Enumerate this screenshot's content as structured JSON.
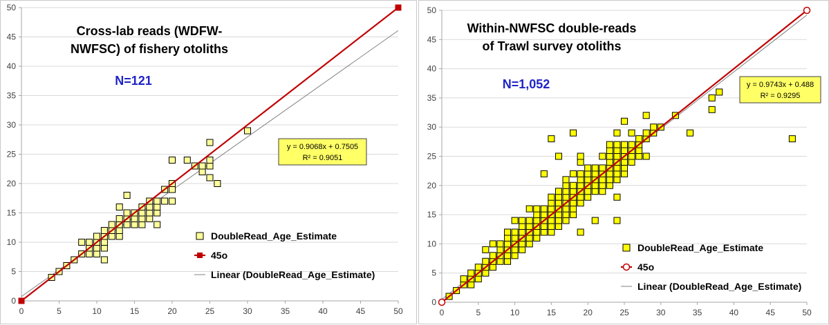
{
  "chart_data": [
    {
      "type": "scatter",
      "title_lines": [
        "Cross-lab reads (WDFW-",
        "NWFSC) of fishery otoliths"
      ],
      "annotation": "N=121",
      "xlim": [
        0,
        50
      ],
      "ylim": [
        0,
        50
      ],
      "xticks": [
        0,
        5,
        10,
        15,
        20,
        25,
        30,
        35,
        40,
        45,
        50
      ],
      "yticks": [
        0,
        5,
        10,
        15,
        20,
        25,
        30,
        35,
        40,
        45,
        50
      ],
      "grid": true,
      "legend_position": "bottom-right",
      "trend_equation": [
        "y = 0.9068x + 0.7505",
        "R² = 0.9051"
      ],
      "colors": {
        "points_fill": "#ffff99",
        "points_edge": "#000000",
        "line_45": "#c00000",
        "trend": "#808080",
        "eq_box": "#ffff66",
        "annotation": "#1f24c8"
      },
      "series": [
        {
          "name": "DoubleRead_Age_Estimate",
          "marker": "square",
          "points": [
            [
              4,
              4
            ],
            [
              5,
              5
            ],
            [
              6,
              6
            ],
            [
              7,
              7
            ],
            [
              8,
              8
            ],
            [
              8,
              10
            ],
            [
              9,
              8
            ],
            [
              9,
              9
            ],
            [
              9,
              10
            ],
            [
              10,
              8
            ],
            [
              10,
              9
            ],
            [
              10,
              10
            ],
            [
              10,
              11
            ],
            [
              11,
              7
            ],
            [
              11,
              9
            ],
            [
              11,
              10
            ],
            [
              11,
              11
            ],
            [
              11,
              12
            ],
            [
              12,
              11
            ],
            [
              12,
              12
            ],
            [
              12,
              13
            ],
            [
              13,
              11
            ],
            [
              13,
              12
            ],
            [
              13,
              13
            ],
            [
              13,
              14
            ],
            [
              13,
              16
            ],
            [
              14,
              13
            ],
            [
              14,
              14
            ],
            [
              14,
              15
            ],
            [
              14,
              18
            ],
            [
              15,
              13
            ],
            [
              15,
              14
            ],
            [
              15,
              15
            ],
            [
              16,
              13
            ],
            [
              16,
              14
            ],
            [
              16,
              15
            ],
            [
              16,
              16
            ],
            [
              17,
              14
            ],
            [
              17,
              15
            ],
            [
              17,
              16
            ],
            [
              17,
              17
            ],
            [
              18,
              13
            ],
            [
              18,
              15
            ],
            [
              18,
              16
            ],
            [
              18,
              17
            ],
            [
              19,
              17
            ],
            [
              19,
              19
            ],
            [
              20,
              17
            ],
            [
              20,
              19
            ],
            [
              20,
              20
            ],
            [
              20,
              24
            ],
            [
              22,
              24
            ],
            [
              23,
              23
            ],
            [
              24,
              22
            ],
            [
              24,
              23
            ],
            [
              25,
              21
            ],
            [
              25,
              23
            ],
            [
              25,
              24
            ],
            [
              25,
              27
            ],
            [
              26,
              20
            ],
            [
              30,
              29
            ]
          ]
        },
        {
          "name": "45o",
          "line": [
            [
              0,
              0
            ],
            [
              50,
              50
            ]
          ]
        },
        {
          "name": "Linear (DoubleRead_Age_Estimate)",
          "slope": 0.9068,
          "intercept": 0.7505
        }
      ]
    },
    {
      "type": "scatter",
      "title_lines": [
        "Within-NWFSC double-reads",
        "of Trawl survey otoliths"
      ],
      "annotation": "N=1,052",
      "xlim": [
        0,
        50
      ],
      "ylim": [
        0,
        50
      ],
      "xticks": [
        0,
        5,
        10,
        15,
        20,
        25,
        30,
        35,
        40,
        45,
        50
      ],
      "yticks": [
        0,
        5,
        10,
        15,
        20,
        25,
        30,
        35,
        40,
        45,
        50
      ],
      "grid": true,
      "legend_position": "bottom-right",
      "trend_equation": [
        "y = 0.9743x + 0.488",
        "R² = 0.9295"
      ],
      "colors": {
        "points_fill": "#ffff00",
        "points_edge": "#000000",
        "line_45": "#c00000",
        "trend": "#808080",
        "eq_box": "#ffff66",
        "annotation": "#1f24c8"
      },
      "series": [
        {
          "name": "DoubleRead_Age_Estimate",
          "marker": "square",
          "points": [
            [
              1,
              1
            ],
            [
              2,
              2
            ],
            [
              3,
              3
            ],
            [
              3,
              4
            ],
            [
              4,
              3
            ],
            [
              4,
              4
            ],
            [
              4,
              5
            ],
            [
              5,
              4
            ],
            [
              5,
              5
            ],
            [
              5,
              6
            ],
            [
              6,
              5
            ],
            [
              6,
              6
            ],
            [
              6,
              7
            ],
            [
              6,
              9
            ],
            [
              7,
              6
            ],
            [
              7,
              7
            ],
            [
              7,
              8
            ],
            [
              7,
              10
            ],
            [
              8,
              7
            ],
            [
              8,
              8
            ],
            [
              8,
              9
            ],
            [
              8,
              10
            ],
            [
              9,
              7
            ],
            [
              9,
              8
            ],
            [
              9,
              9
            ],
            [
              9,
              10
            ],
            [
              9,
              11
            ],
            [
              9,
              12
            ],
            [
              10,
              8
            ],
            [
              10,
              9
            ],
            [
              10,
              10
            ],
            [
              10,
              11
            ],
            [
              10,
              12
            ],
            [
              10,
              14
            ],
            [
              11,
              9
            ],
            [
              11,
              10
            ],
            [
              11,
              11
            ],
            [
              11,
              12
            ],
            [
              11,
              13
            ],
            [
              11,
              14
            ],
            [
              12,
              10
            ],
            [
              12,
              11
            ],
            [
              12,
              12
            ],
            [
              12,
              13
            ],
            [
              12,
              14
            ],
            [
              12,
              16
            ],
            [
              13,
              11
            ],
            [
              13,
              12
            ],
            [
              13,
              13
            ],
            [
              13,
              14
            ],
            [
              13,
              15
            ],
            [
              13,
              16
            ],
            [
              14,
              12
            ],
            [
              14,
              13
            ],
            [
              14,
              14
            ],
            [
              14,
              15
            ],
            [
              14,
              16
            ],
            [
              14,
              22
            ],
            [
              15,
              12
            ],
            [
              15,
              13
            ],
            [
              15,
              14
            ],
            [
              15,
              15
            ],
            [
              15,
              16
            ],
            [
              15,
              17
            ],
            [
              15,
              18
            ],
            [
              15,
              28
            ],
            [
              16,
              13
            ],
            [
              16,
              14
            ],
            [
              16,
              15
            ],
            [
              16,
              16
            ],
            [
              16,
              17
            ],
            [
              16,
              18
            ],
            [
              16,
              19
            ],
            [
              16,
              25
            ],
            [
              17,
              14
            ],
            [
              17,
              15
            ],
            [
              17,
              16
            ],
            [
              17,
              17
            ],
            [
              17,
              18
            ],
            [
              17,
              19
            ],
            [
              17,
              20
            ],
            [
              17,
              21
            ],
            [
              18,
              15
            ],
            [
              18,
              16
            ],
            [
              18,
              17
            ],
            [
              18,
              18
            ],
            [
              18,
              19
            ],
            [
              18,
              20
            ],
            [
              18,
              22
            ],
            [
              18,
              29
            ],
            [
              19,
              12
            ],
            [
              19,
              17
            ],
            [
              19,
              18
            ],
            [
              19,
              19
            ],
            [
              19,
              20
            ],
            [
              19,
              21
            ],
            [
              19,
              22
            ],
            [
              19,
              24
            ],
            [
              19,
              25
            ],
            [
              20,
              18
            ],
            [
              20,
              19
            ],
            [
              20,
              20
            ],
            [
              20,
              21
            ],
            [
              20,
              22
            ],
            [
              20,
              23
            ],
            [
              21,
              19
            ],
            [
              21,
              20
            ],
            [
              21,
              21
            ],
            [
              21,
              22
            ],
            [
              21,
              23
            ],
            [
              21,
              14
            ],
            [
              22,
              19
            ],
            [
              22,
              20
            ],
            [
              22,
              21
            ],
            [
              22,
              22
            ],
            [
              22,
              23
            ],
            [
              22,
              25
            ],
            [
              23,
              20
            ],
            [
              23,
              21
            ],
            [
              23,
              22
            ],
            [
              23,
              23
            ],
            [
              23,
              24
            ],
            [
              23,
              25
            ],
            [
              23,
              26
            ],
            [
              23,
              27
            ],
            [
              24,
              14
            ],
            [
              24,
              18
            ],
            [
              24,
              21
            ],
            [
              24,
              22
            ],
            [
              24,
              23
            ],
            [
              24,
              24
            ],
            [
              24,
              25
            ],
            [
              24,
              26
            ],
            [
              24,
              27
            ],
            [
              24,
              29
            ],
            [
              25,
              22
            ],
            [
              25,
              23
            ],
            [
              25,
              24
            ],
            [
              25,
              25
            ],
            [
              25,
              26
            ],
            [
              25,
              27
            ],
            [
              25,
              31
            ],
            [
              26,
              24
            ],
            [
              26,
              25
            ],
            [
              26,
              26
            ],
            [
              26,
              27
            ],
            [
              26,
              29
            ],
            [
              27,
              25
            ],
            [
              27,
              26
            ],
            [
              27,
              27
            ],
            [
              27,
              28
            ],
            [
              28,
              25
            ],
            [
              28,
              28
            ],
            [
              28,
              29
            ],
            [
              28,
              32
            ],
            [
              29,
              29
            ],
            [
              29,
              30
            ],
            [
              30,
              30
            ],
            [
              32,
              32
            ],
            [
              34,
              29
            ],
            [
              37,
              33
            ],
            [
              37,
              35
            ],
            [
              38,
              36
            ],
            [
              48,
              28
            ]
          ]
        },
        {
          "name": "45o",
          "line": [
            [
              0,
              0
            ],
            [
              50,
              50
            ]
          ]
        },
        {
          "name": "Linear (DoubleRead_Age_Estimate)",
          "slope": 0.9743,
          "intercept": 0.488
        }
      ]
    }
  ]
}
